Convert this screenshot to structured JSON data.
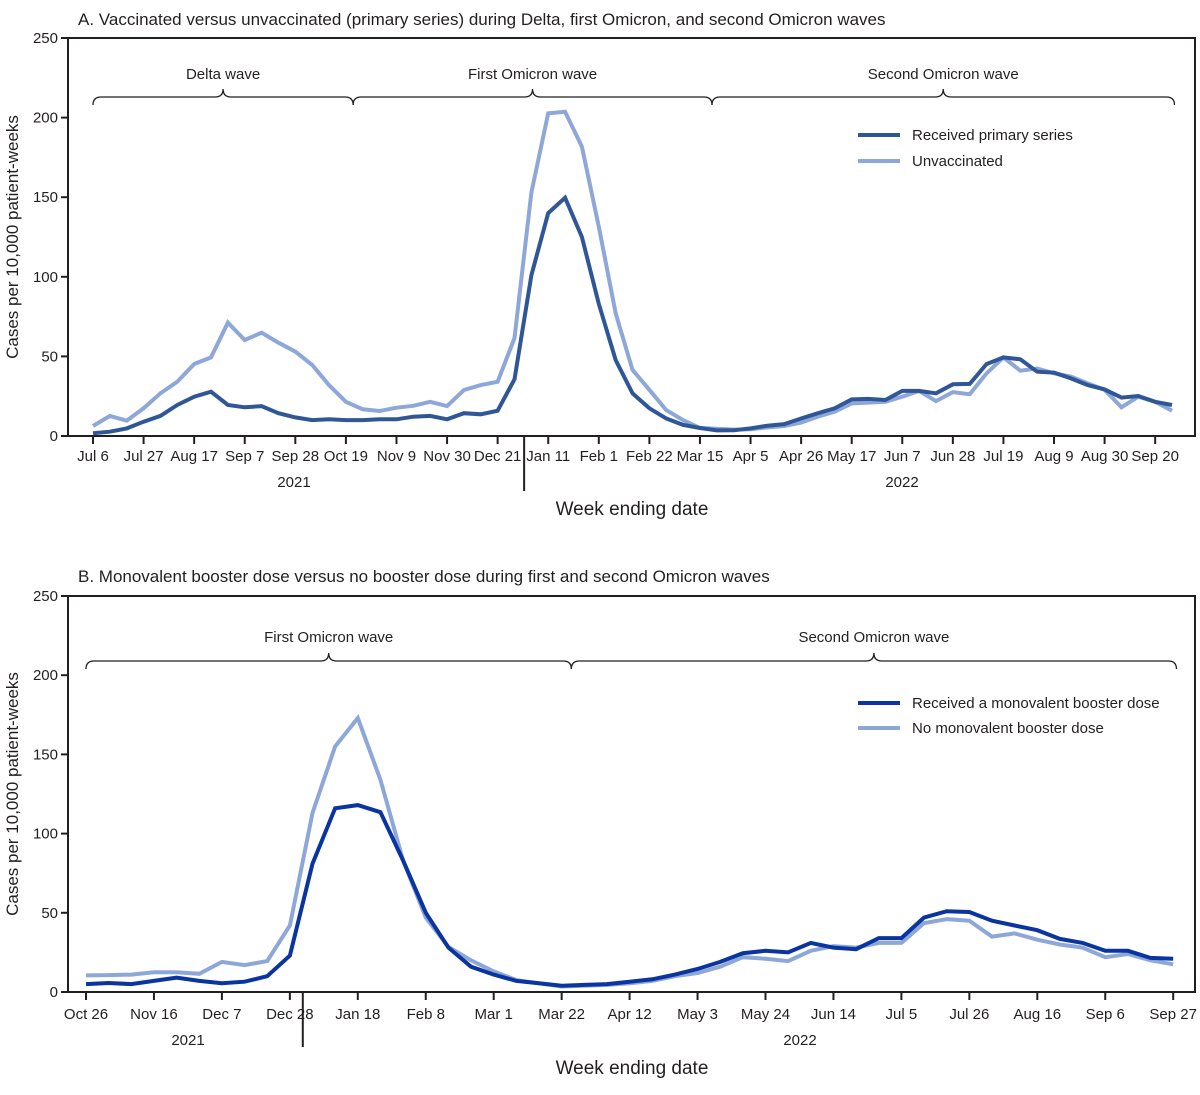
{
  "colors": {
    "a_primary": "#2f5797",
    "a_unvacc": "#8ea7d9",
    "b_booster": "#0a35a0",
    "b_none": "#8ea7d9",
    "axis": "#231f20"
  },
  "chart_data": [
    {
      "type": "line",
      "title": "A. Vaccinated versus unvaccinated (primary series) during Delta, first Omicron, and second Omicron waves",
      "xlabel": "Week ending date",
      "ylabel": "Cases per 10,000 patient-weeks",
      "ylim": [
        0,
        250
      ],
      "yticks": [
        "0",
        "50",
        "100",
        "150",
        "200",
        "250"
      ],
      "xtick_labels": [
        "Jul 6",
        "Jul 27",
        "Aug 17",
        "Sep 7",
        "Sep 28",
        "Oct 19",
        "Nov 9",
        "Nov 30",
        "Dec 21",
        "Jan 11",
        "Feb 1",
        "Feb 22",
        "Mar 15",
        "Apr 5",
        "Apr 26",
        "May 17",
        "Jun 7",
        "Jun 28",
        "Jul 19",
        "Aug 9",
        "Aug 30",
        "Sep 20"
      ],
      "year_labels": [
        "2021",
        "2022"
      ],
      "grid": false,
      "legend": "top-right",
      "x": [
        "2021-07-06",
        "2021-07-13",
        "2021-07-20",
        "2021-07-27",
        "2021-08-03",
        "2021-08-10",
        "2021-08-17",
        "2021-08-24",
        "2021-08-31",
        "2021-09-07",
        "2021-09-14",
        "2021-09-21",
        "2021-09-28",
        "2021-10-05",
        "2021-10-12",
        "2021-10-19",
        "2021-10-26",
        "2021-11-02",
        "2021-11-09",
        "2021-11-16",
        "2021-11-23",
        "2021-11-30",
        "2021-12-07",
        "2021-12-14",
        "2021-12-21",
        "2021-12-28",
        "2022-01-04",
        "2022-01-11",
        "2022-01-18",
        "2022-01-25",
        "2022-02-01",
        "2022-02-08",
        "2022-02-15",
        "2022-02-22",
        "2022-03-01",
        "2022-03-08",
        "2022-03-15",
        "2022-03-22",
        "2022-03-29",
        "2022-04-05",
        "2022-04-12",
        "2022-04-19",
        "2022-04-26",
        "2022-05-03",
        "2022-05-10",
        "2022-05-17",
        "2022-05-24",
        "2022-05-31",
        "2022-06-07",
        "2022-06-14",
        "2022-06-21",
        "2022-06-28",
        "2022-07-05",
        "2022-07-12",
        "2022-07-19",
        "2022-07-26",
        "2022-08-02",
        "2022-08-09",
        "2022-08-16",
        "2022-08-23",
        "2022-08-30",
        "2022-09-06",
        "2022-09-13",
        "2022-09-20",
        "2022-09-27"
      ],
      "series": [
        {
          "name": "Received primary series",
          "color": "#2f5797",
          "values": [
            1.7,
            2.7,
            4.8,
            9,
            12.6,
            19.5,
            24.7,
            27.8,
            19.5,
            18,
            18.8,
            14.3,
            11.7,
            10,
            10.5,
            10,
            10,
            10.5,
            10.5,
            12.1,
            12.6,
            10.5,
            14.3,
            13.6,
            15.9,
            35.6,
            101,
            140,
            149.7,
            125,
            83,
            47.7,
            26.8,
            17.4,
            11,
            7,
            5,
            3.5,
            3.6,
            4.8,
            6.5,
            7.5,
            11,
            14.3,
            17.4,
            23,
            23.3,
            22.6,
            28.3,
            28.3,
            26.8,
            32.5,
            32.7,
            45.2,
            49.4,
            48.2,
            40.4,
            39.8,
            36.2,
            32,
            29.3,
            24.1,
            25.1,
            21.5,
            19.5
          ]
        },
        {
          "name": "Unvaccinated",
          "color": "#8ea7d9",
          "values": [
            6.3,
            12.6,
            9.6,
            17.4,
            26.8,
            34.1,
            45.2,
            49.4,
            71.2,
            60.3,
            64.9,
            58.6,
            53,
            44.6,
            32,
            21.5,
            16.8,
            15.7,
            17.8,
            19,
            21.5,
            18.8,
            28.9,
            32,
            34.1,
            61.5,
            153,
            202.7,
            203.7,
            181.7,
            131.5,
            77,
            41.5,
            29,
            16.3,
            10,
            5,
            4.5,
            4,
            4.2,
            5.4,
            6.3,
            8.4,
            12.2,
            15.3,
            20.5,
            21,
            21.5,
            24.7,
            28.3,
            21.9,
            27.6,
            26.2,
            39.4,
            49.4,
            41,
            42.4,
            39.4,
            37.3,
            33.1,
            29,
            18,
            24.7,
            21.5,
            15.9
          ]
        }
      ],
      "annotations": [
        {
          "label": "Delta wave",
          "from": "2021-07-06",
          "to": "2021-10-22"
        },
        {
          "label": "First Omicron wave",
          "from": "2021-10-22",
          "to": "2022-03-20"
        },
        {
          "label": "Second Omicron wave",
          "from": "2022-03-20",
          "to": "2022-09-28"
        }
      ]
    },
    {
      "type": "line",
      "title": "B. Monovalent booster dose versus no booster dose during first and second Omicron waves",
      "xlabel": "Week ending date",
      "ylabel": "Cases per 10,000 patient-weeks",
      "ylim": [
        0,
        250
      ],
      "yticks": [
        "0",
        "50",
        "100",
        "150",
        "200",
        "250"
      ],
      "xtick_labels": [
        "Oct 26",
        "Nov 16",
        "Dec 7",
        "Dec 28",
        "Jan 18",
        "Feb 8",
        "Mar 1",
        "Mar 22",
        "Apr 12",
        "May 3",
        "May 24",
        "Jun 14",
        "Jul 5",
        "Jul 26",
        "Aug 16",
        "Sep 6",
        "Sep 27"
      ],
      "year_labels": [
        "2021",
        "2022"
      ],
      "grid": false,
      "legend": "top-right",
      "x": [
        "2021-10-26",
        "2021-11-02",
        "2021-11-09",
        "2021-11-16",
        "2021-11-23",
        "2021-11-30",
        "2021-12-07",
        "2021-12-14",
        "2021-12-21",
        "2021-12-28",
        "2022-01-04",
        "2022-01-11",
        "2022-01-18",
        "2022-01-25",
        "2022-02-01",
        "2022-02-08",
        "2022-02-15",
        "2022-02-22",
        "2022-03-01",
        "2022-03-08",
        "2022-03-15",
        "2022-03-22",
        "2022-03-29",
        "2022-04-05",
        "2022-04-12",
        "2022-04-19",
        "2022-04-26",
        "2022-05-03",
        "2022-05-10",
        "2022-05-17",
        "2022-05-24",
        "2022-05-31",
        "2022-06-07",
        "2022-06-14",
        "2022-06-21",
        "2022-06-28",
        "2022-07-05",
        "2022-07-12",
        "2022-07-19",
        "2022-07-26",
        "2022-08-02",
        "2022-08-09",
        "2022-08-16",
        "2022-08-23",
        "2022-08-30",
        "2022-09-06",
        "2022-09-13",
        "2022-09-20",
        "2022-09-27"
      ],
      "series": [
        {
          "name": "Received a monovalent booster dose",
          "color": "#0a35a0",
          "values": [
            5,
            5.7,
            5,
            7,
            9,
            7,
            5.5,
            6.5,
            10,
            23,
            81,
            116,
            118,
            113.5,
            83,
            50,
            28,
            16,
            11,
            7,
            5.5,
            4,
            4.5,
            5,
            6.5,
            8,
            11,
            14.5,
            19,
            24.5,
            26,
            25,
            31,
            28,
            27,
            34,
            34,
            47,
            51,
            50.5,
            45,
            42,
            39,
            33.5,
            31,
            26,
            26,
            21.5,
            21
          ]
        },
        {
          "name": "No monovalent booster dose",
          "color": "#8ea7d9",
          "values": [
            10.5,
            10.7,
            11,
            12.5,
            12.5,
            11.5,
            19,
            17,
            19.5,
            42,
            113,
            155,
            173,
            134,
            83,
            47,
            28.5,
            20,
            13,
            7.5,
            5.5,
            3.5,
            4,
            4.5,
            5.5,
            7,
            10,
            12,
            16,
            22,
            21,
            19.5,
            26,
            29,
            28,
            31,
            31,
            43.5,
            46,
            45,
            35,
            37,
            33,
            30,
            28,
            22,
            24,
            20,
            17.5
          ]
        }
      ],
      "annotations": [
        {
          "label": "First Omicron wave",
          "from": "2021-10-26",
          "to": "2022-03-25"
        },
        {
          "label": "Second Omicron wave",
          "from": "2022-03-25",
          "to": "2022-09-28"
        }
      ]
    }
  ]
}
